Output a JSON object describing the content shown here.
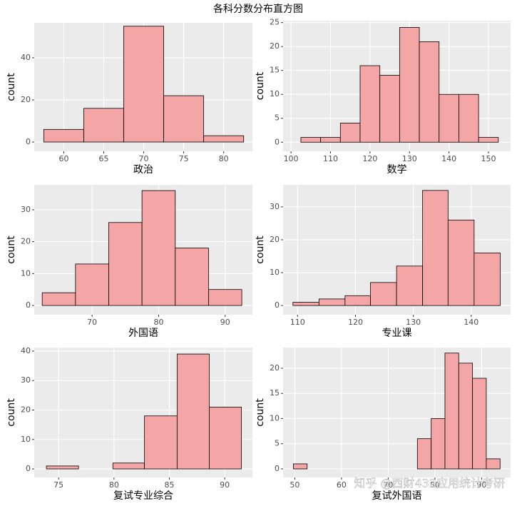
{
  "title": "各科分数分布直方图",
  "watermark": "知乎 @西财432应用统计考研",
  "chart_data": [
    {
      "type": "histogram",
      "xlabel": "政治",
      "ylabel": "count",
      "color": "#f4a6a6",
      "grid": true,
      "bins": [
        57.5,
        62.5,
        67.5,
        72.5,
        77.5,
        82.5
      ],
      "values": [
        6,
        16,
        55,
        22,
        3
      ],
      "xlim": [
        56.3,
        83.6
      ],
      "ylim": [
        -4.4,
        56.6
      ],
      "xticks": [
        60,
        65,
        70,
        75,
        80
      ],
      "yticks": [
        0,
        20,
        40
      ]
    },
    {
      "type": "histogram",
      "xlabel": "数学",
      "ylabel": "count",
      "color": "#f4a6a6",
      "grid": true,
      "bins": [
        102.5,
        107.5,
        112.5,
        117.5,
        122.5,
        127.5,
        132.5,
        137.5,
        142.5,
        147.5,
        152.5
      ],
      "values": [
        1,
        1,
        4,
        16,
        14,
        24,
        21,
        10,
        10,
        1
      ],
      "xlim": [
        98,
        155.6
      ],
      "ylim": [
        -1.9,
        25.4
      ],
      "xticks": [
        100,
        110,
        120,
        130,
        140,
        150
      ],
      "yticks": [
        0,
        5,
        10,
        15,
        20,
        25
      ]
    },
    {
      "type": "histogram",
      "xlabel": "外国语",
      "ylabel": "count",
      "color": "#f4a6a6",
      "grid": true,
      "bins": [
        62.5,
        67.5,
        72.5,
        77.5,
        82.5,
        87.5,
        92.5
      ],
      "values": [
        4,
        13,
        26,
        36,
        18,
        5
      ],
      "xlim": [
        61.3,
        94.1
      ],
      "ylim": [
        -2.9,
        37.8
      ],
      "xticks": [
        70,
        80,
        90
      ],
      "yticks": [
        0,
        10,
        20,
        30
      ]
    },
    {
      "type": "histogram",
      "xlabel": "专业课",
      "ylabel": "count",
      "color": "#f4a6a6",
      "grid": true,
      "bins": [
        109.2,
        113.7,
        118.2,
        122.6,
        127.1,
        131.6,
        136.0,
        140.5,
        145.0
      ],
      "values": [
        1,
        2,
        3,
        7,
        12,
        35,
        26,
        16
      ],
      "xlim": [
        107.5,
        146.8
      ],
      "ylim": [
        -2.8,
        36.7
      ],
      "xticks": [
        110,
        120,
        130,
        140
      ],
      "yticks": [
        0,
        10,
        20,
        30
      ]
    },
    {
      "type": "histogram",
      "xlabel": "复试专业综合",
      "ylabel": "count",
      "color": "#f4a6a6",
      "grid": true,
      "bins": [
        73.9,
        76.8,
        79.9,
        82.75,
        85.7,
        88.6,
        91.5
      ],
      "values": [
        1,
        0,
        2,
        18,
        39,
        21
      ],
      "xlim": [
        72.8,
        92.5
      ],
      "ylim": [
        -2.9,
        41.2
      ],
      "xticks": [
        75,
        80,
        85,
        90
      ],
      "yticks": [
        0,
        10,
        20,
        30,
        40
      ]
    },
    {
      "type": "histogram",
      "xlabel": "复试外国语",
      "ylabel": "count",
      "color": "#f4a6a6",
      "grid": true,
      "bins": [
        49.7,
        52.65,
        55.6,
        58.55,
        61.5,
        64.45,
        67.4,
        70.35,
        73.3,
        76.25,
        79.2,
        82.15,
        85.1,
        88.05,
        91.0,
        93.95
      ],
      "values": [
        1,
        0,
        0,
        0,
        0,
        0,
        0,
        0,
        0,
        6,
        10,
        23,
        21,
        18,
        2
      ],
      "xlim": [
        47.5,
        96.2
      ],
      "ylim": [
        -1.7,
        24.1
      ],
      "xticks": [
        50,
        60,
        70,
        80,
        90
      ],
      "yticks": [
        0,
        5,
        10,
        15,
        20
      ]
    }
  ]
}
